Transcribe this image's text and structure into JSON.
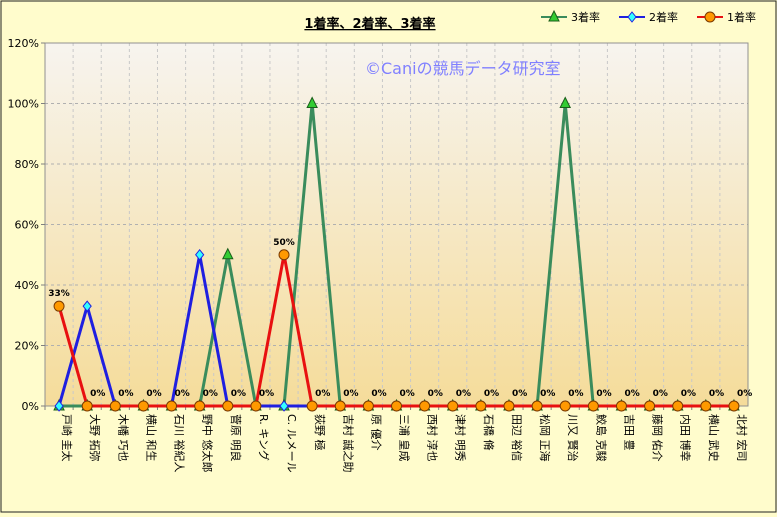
{
  "chart_data": {
    "type": "line",
    "title": "1着率、2着率、3着率",
    "watermark": "©Caniの競馬データ研究室",
    "categories": [
      "戸崎 圭太",
      "大野 拓弥",
      "木幡 巧也",
      "横山 和生",
      "石川 裕紀人",
      "野中 悠太郎",
      "菅原 明良",
      "R. キング",
      "C. ルメール",
      "荻野 極",
      "吉村 誠之助",
      "原 優介",
      "三浦 皇成",
      "西村 淳也",
      "津村 明秀",
      "石橋 脩",
      "田辺 裕信",
      "松岡 正海",
      "川又 賢治",
      "鮫島 克駿",
      "吉田 豊",
      "藤岡 佑介",
      "内田 博幸",
      "横山 武史",
      "北村 宏司"
    ],
    "ylim": [
      0,
      120
    ],
    "yticks": [
      "0%",
      "20%",
      "40%",
      "60%",
      "80%",
      "100%",
      "120%"
    ],
    "grid": true,
    "legend_position": "top-right",
    "series": [
      {
        "name": "3着率",
        "color": "#3a8c5c",
        "marker": "triangle",
        "marker_fill": "#33cc33",
        "values": [
          0,
          0,
          0,
          0,
          0,
          0,
          50,
          0,
          0,
          100,
          0,
          0,
          0,
          0,
          0,
          0,
          0,
          0,
          100,
          0,
          0,
          0,
          0,
          0,
          0
        ]
      },
      {
        "name": "2着率",
        "color": "#1f1fe0",
        "marker": "diamond",
        "marker_fill": "#33ffff",
        "values": [
          0,
          33,
          0,
          0,
          0,
          50,
          0,
          0,
          0,
          0,
          0,
          0,
          0,
          0,
          0,
          0,
          0,
          0,
          0,
          0,
          0,
          0,
          0,
          0,
          0
        ]
      },
      {
        "name": "1着率",
        "color": "#e81010",
        "marker": "circle",
        "marker_fill": "#ff9900",
        "values": [
          33,
          0,
          0,
          0,
          0,
          0,
          0,
          0,
          50,
          0,
          0,
          0,
          0,
          0,
          0,
          0,
          0,
          0,
          0,
          0,
          0,
          0,
          0,
          0,
          0
        ]
      }
    ],
    "data_labels": [
      "33%",
      "0%",
      "0%",
      "0%",
      "0%",
      "0%",
      "0%",
      "0%",
      "50%",
      "0%",
      "0%",
      "0%",
      "0%",
      "0%",
      "0%",
      "0%",
      "0%",
      "0%",
      "0%",
      "0%",
      "0%",
      "0%",
      "0%",
      "0%",
      "0%"
    ]
  }
}
